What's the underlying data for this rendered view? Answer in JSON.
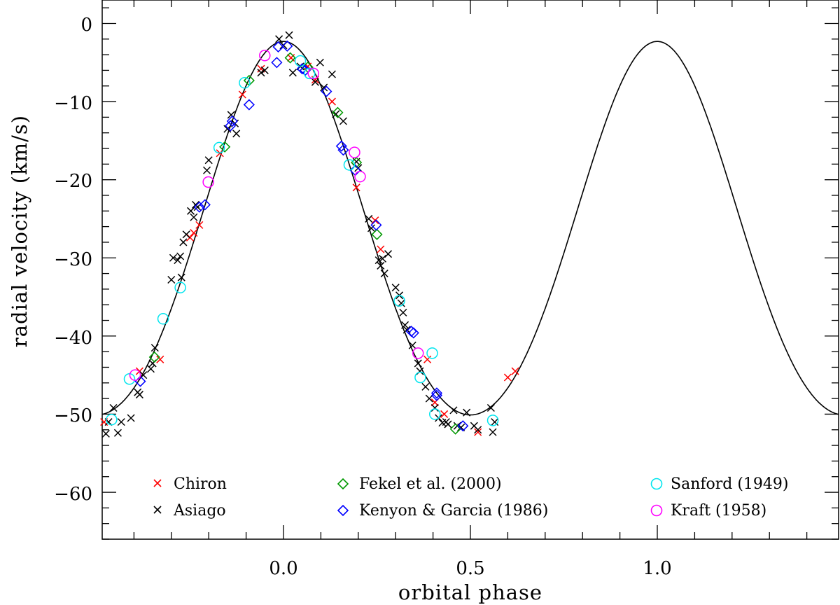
{
  "chart_data": {
    "type": "scatter",
    "xlabel": "orbital phase",
    "ylabel": "radial velocity (km/s)",
    "xlim": [
      -0.485,
      1.485
    ],
    "ylim": [
      -66,
      3
    ],
    "xticks": [
      0.0,
      0.5,
      1.0
    ],
    "xtick_labels": [
      "0.0",
      "0.5",
      "1.0"
    ],
    "xminor_step": 0.1,
    "yticks": [
      0,
      -10,
      -20,
      -30,
      -40,
      -50,
      -60
    ],
    "ytick_labels": [
      "0",
      "−10",
      "−20",
      "−30",
      "−40",
      "−50",
      "−60"
    ],
    "yminor_step": 2,
    "grid": false,
    "model_curve": {
      "name": "orbit fit",
      "color": "#000000",
      "gamma": -27.8,
      "amplitude": 23.9,
      "eccentricity_term": 1.6,
      "phase_of_max": 0.0
    },
    "series": [
      {
        "name": "Chiron",
        "marker": "x",
        "color": "#ff0000",
        "x": [
          -0.48,
          -0.385,
          -0.33,
          -0.25,
          -0.24,
          -0.225,
          -0.17,
          -0.11,
          -0.06,
          0.02,
          0.065,
          0.085,
          0.13,
          0.195,
          0.245,
          0.26,
          0.385,
          0.405,
          0.43,
          0.52,
          0.6,
          0.62
        ],
        "y": [
          -51,
          -44.5,
          -43,
          -27.4,
          -26.8,
          -25.8,
          -16.6,
          -9.1,
          -5.8,
          -4.4,
          -5.5,
          -7.2,
          -10,
          -21,
          -25.2,
          -28.9,
          -43,
          -48.5,
          -50,
          -52.3,
          -45.3,
          -44.5
        ]
      },
      {
        "name": "Asiago",
        "marker": "x",
        "color": "#000000",
        "x": [
          -0.475,
          -0.468,
          -0.455,
          -0.443,
          -0.434,
          -0.408,
          -0.39,
          -0.385,
          -0.375,
          -0.355,
          -0.35,
          -0.344,
          -0.3,
          -0.295,
          -0.283,
          -0.276,
          -0.273,
          -0.268,
          -0.26,
          -0.248,
          -0.24,
          -0.235,
          -0.23,
          -0.205,
          -0.2,
          -0.15,
          -0.14,
          -0.13,
          -0.126,
          -0.06,
          -0.05,
          -0.012,
          0.0,
          0.015,
          0.025,
          0.045,
          0.085,
          0.098,
          0.108,
          0.13,
          0.14,
          0.16,
          0.195,
          0.2,
          0.228,
          0.235,
          0.255,
          0.26,
          0.265,
          0.27,
          0.28,
          0.3,
          0.31,
          0.315,
          0.32,
          0.325,
          0.33,
          0.345,
          0.36,
          0.365,
          0.38,
          0.39,
          0.405,
          0.415,
          0.425,
          0.435,
          0.44,
          0.455,
          0.465,
          0.475,
          0.49,
          0.51,
          0.52,
          0.555,
          0.56,
          0.565
        ],
        "y": [
          -52.5,
          -51,
          -49.2,
          -52.4,
          -51,
          -50.5,
          -47.2,
          -47.5,
          -45,
          -44.2,
          -43.5,
          -41.5,
          -32.8,
          -30,
          -30.3,
          -29.8,
          -32.5,
          -28,
          -27,
          -24,
          -24.8,
          -23.2,
          -23.5,
          -18.8,
          -17.5,
          -13.5,
          -11.7,
          -12.8,
          -14.1,
          -6.3,
          -6,
          -2,
          -2.8,
          -1.5,
          -6.3,
          -5.5,
          -7.5,
          -5,
          -8.2,
          -6.5,
          -11.6,
          -12.5,
          -17.7,
          -18.5,
          -25,
          -26.2,
          -30.3,
          -31,
          -30.1,
          -32,
          -29.5,
          -33.8,
          -34.8,
          -35.8,
          -37,
          -38.6,
          -39.2,
          -41.2,
          -43.5,
          -44.5,
          -46.5,
          -48,
          -49.2,
          -50.5,
          -51.1,
          -51,
          -51.3,
          -49.5,
          -51.5,
          -51.7,
          -49.8,
          -51.5,
          -52,
          -49.2,
          -52.3,
          -51
        ]
      },
      {
        "name": "Fekel et al. (2000)",
        "marker": "diamond",
        "color": "#009900",
        "x": [
          -0.345,
          -0.157,
          -0.092,
          0.018,
          0.065,
          0.145,
          0.195,
          0.25,
          0.46
        ],
        "y": [
          -42.7,
          -15.8,
          -7.3,
          -4.4,
          -5.6,
          -11.4,
          -17.8,
          -27,
          -51.9
        ]
      },
      {
        "name": "Kenyon & Garcia (1986)",
        "marker": "diamond",
        "color": "#0000ff",
        "x": [
          -0.383,
          -0.225,
          -0.21,
          -0.142,
          -0.137,
          -0.092,
          -0.018,
          -0.014,
          0.01,
          0.05,
          0.058,
          0.115,
          0.155,
          0.16,
          0.192,
          0.248,
          0.342,
          0.348,
          0.41,
          0.41,
          0.48
        ],
        "y": [
          -45.8,
          -23.5,
          -23.2,
          -13.1,
          -12.5,
          -10.4,
          -5,
          -3,
          -2.9,
          -5.8,
          -6,
          -8.7,
          -15.7,
          -16.2,
          -18.8,
          -25.8,
          -39.4,
          -39.6,
          -47.3,
          -47.6,
          -51.5
        ]
      },
      {
        "name": "Sanford (1949)",
        "marker": "circle",
        "color": "#00e5ee",
        "x": [
          -0.46,
          -0.412,
          -0.322,
          -0.276,
          -0.172,
          -0.104,
          0.045,
          0.07,
          0.176,
          0.31,
          0.366,
          0.398,
          0.405,
          0.56
        ],
        "y": [
          -50.7,
          -45.5,
          -37.8,
          -33.8,
          -15.9,
          -7.6,
          -4.8,
          -6.4,
          -18.1,
          -35.5,
          -45.3,
          -42.2,
          -50,
          -50.8
        ]
      },
      {
        "name": "Kraft (1958)",
        "marker": "circle",
        "color": "#ff00ff",
        "x": [
          -0.397,
          -0.201,
          -0.05,
          0.08,
          0.19,
          0.205,
          0.36
        ],
        "y": [
          -45,
          -20.3,
          -4.1,
          -6.4,
          -16.5,
          -19.6,
          -42.2
        ]
      }
    ]
  }
}
